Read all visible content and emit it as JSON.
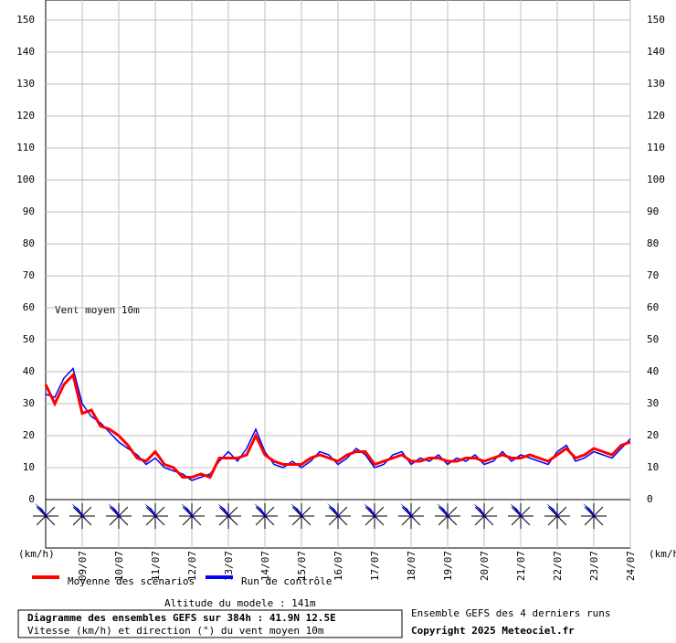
{
  "chart_data": {
    "type": "line",
    "annotation": "Vent moyen 10m",
    "y_unit_left": "(km/h)",
    "y_unit_right": "(km/h)",
    "categories": [
      null,
      null,
      null,
      null,
      "09/07",
      null,
      null,
      null,
      "10/07",
      null,
      null,
      null,
      "11/07",
      null,
      null,
      null,
      "12/07",
      null,
      null,
      null,
      "13/07",
      null,
      null,
      null,
      "14/07",
      null,
      null,
      null,
      "15/07",
      null,
      null,
      null,
      "16/07",
      null,
      null,
      null,
      "17/07",
      null,
      null,
      null,
      "18/07",
      null,
      null,
      null,
      "19/07",
      null,
      null,
      null,
      "20/07",
      null,
      null,
      null,
      "21/07",
      null,
      null,
      null,
      "22/07",
      null,
      null,
      null,
      "23/07",
      null,
      null,
      null,
      "24/07"
    ],
    "series": [
      {
        "name": "Moyenne des scénarios",
        "color": "#ff0000",
        "values": [
          36,
          30,
          36,
          39,
          27,
          28,
          23,
          22,
          20,
          17,
          13,
          12,
          15,
          11,
          10,
          7,
          7,
          8,
          7,
          13,
          13,
          13,
          14,
          20,
          14,
          12,
          11,
          11,
          11,
          13,
          14,
          13,
          12,
          14,
          15,
          15,
          11,
          12,
          13,
          14,
          12,
          12,
          13,
          13,
          12,
          12,
          13,
          13,
          12,
          13,
          14,
          13,
          13,
          14,
          13,
          12,
          14,
          16,
          13,
          14,
          16,
          15,
          14,
          17,
          18
        ]
      },
      {
        "name": "Run de contrôle",
        "color": "#0000ff",
        "values": [
          33,
          32,
          38,
          41,
          30,
          26,
          24,
          21,
          18,
          16,
          14,
          11,
          13,
          10,
          9,
          8,
          6,
          7,
          8,
          12,
          15,
          12,
          16,
          22,
          15,
          11,
          10,
          12,
          10,
          12,
          15,
          14,
          11,
          13,
          16,
          14,
          10,
          11,
          14,
          15,
          11,
          13,
          12,
          14,
          11,
          13,
          12,
          14,
          11,
          12,
          15,
          12,
          14,
          13,
          12,
          11,
          15,
          17,
          12,
          13,
          15,
          14,
          13,
          16,
          19
        ]
      }
    ],
    "ylim": [
      0,
      150
    ],
    "yticks": [
      0,
      10,
      20,
      30,
      40,
      50,
      60,
      70,
      80,
      90,
      100,
      110,
      120,
      130,
      140,
      150
    ],
    "grid": true
  },
  "footer": {
    "altitude": "Altitude du modele : 141m",
    "title": "Diagramme des ensembles GEFS sur 384h : 41.9N 12.5E",
    "subtitle": "Vitesse (km/h) et direction (°) du vent moyen 10m",
    "ensemble_note": "Ensemble GEFS des 4 derniers runs",
    "copyright": "Copyright 2025 Meteociel.fr"
  }
}
